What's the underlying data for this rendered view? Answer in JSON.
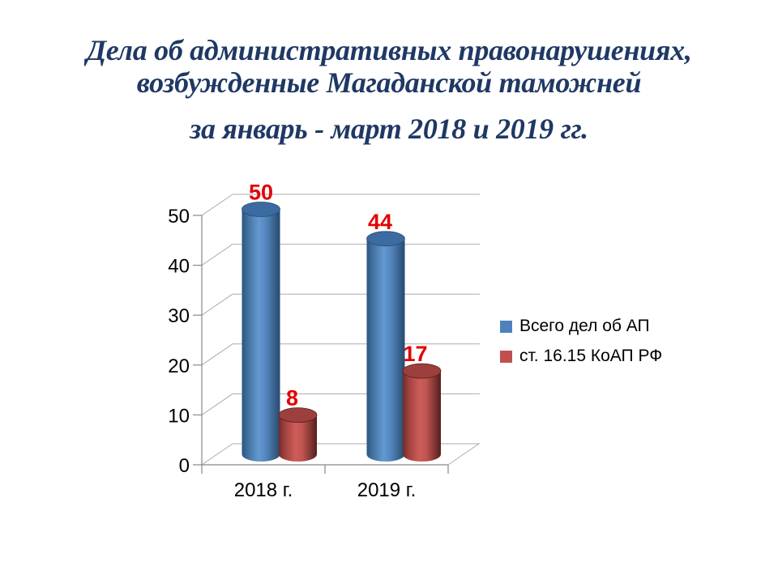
{
  "title": {
    "line1": "Дела об административных правонарушениях,",
    "line2": "возбужденные Магаданской таможней",
    "line3": "за январь - март 2018 и 2019 гг."
  },
  "colors": {
    "background": "#FFFFFF",
    "title": "#1F3864",
    "series1": "#4F81BD",
    "series2": "#C0504D",
    "data_label": "#E30000",
    "gridline": "#ABABAB",
    "axis": "#898989",
    "text": "#000000"
  },
  "chart_data": {
    "type": "bar",
    "subtype": "3d-cylinder",
    "title": "",
    "xlabel": "",
    "ylabel": "",
    "categories": [
      "2018 г.",
      "2019 г."
    ],
    "series": [
      {
        "name": "Всего дел об АП",
        "color": "#4F81BD",
        "values": [
          50,
          44
        ]
      },
      {
        "name": "ст. 16.15 КоАП РФ",
        "color": "#C0504D",
        "values": [
          8,
          17
        ]
      }
    ],
    "ylim": [
      0,
      50
    ],
    "yticks": [
      0,
      10,
      20,
      30,
      40,
      50
    ],
    "grid": true,
    "data_labels": true,
    "data_label_values": [
      "50",
      "44",
      "8",
      "17"
    ],
    "legend_position": "right"
  }
}
